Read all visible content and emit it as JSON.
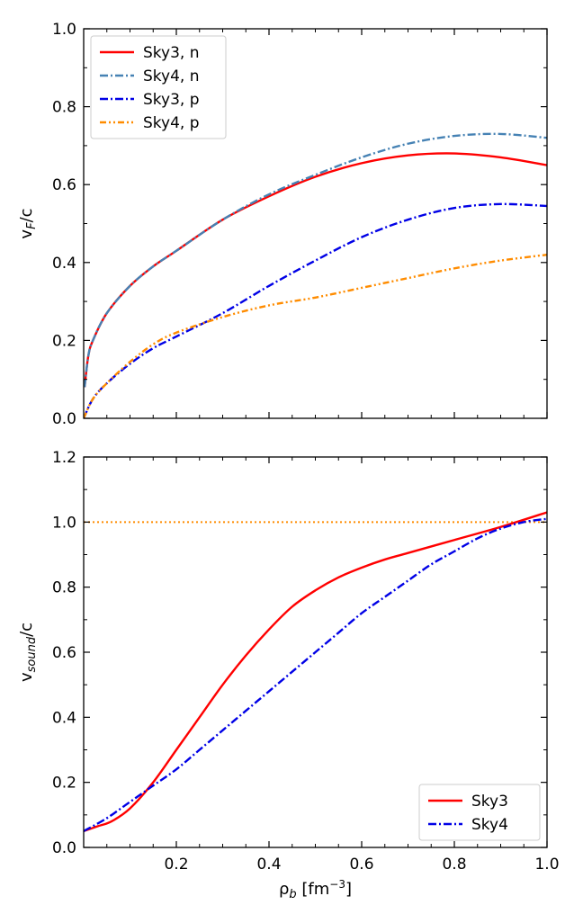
{
  "chart_data": [
    {
      "type": "line",
      "title": "",
      "xlabel": "",
      "ylabel": "v_F/c",
      "ylabel_main": "v",
      "ylabel_sub": "F",
      "ylabel_tail": "/c",
      "xlim": [
        0,
        1.0
      ],
      "ylim": [
        0,
        1.0
      ],
      "xticks": [
        0.2,
        0.4,
        0.6,
        0.8,
        1.0
      ],
      "xtick_labels_shown": false,
      "yticks": [
        0.0,
        0.2,
        0.4,
        0.6,
        0.8,
        1.0
      ],
      "ytick_labels": [
        "0.0",
        "0.2",
        "0.4",
        "0.6",
        "0.8",
        "1.0"
      ],
      "legend_position": "top-left",
      "series": [
        {
          "name": "Sky3, n",
          "color": "#ff0000",
          "dash": "solid",
          "x": [
            0.002,
            0.01,
            0.02,
            0.05,
            0.1,
            0.15,
            0.2,
            0.3,
            0.4,
            0.5,
            0.6,
            0.7,
            0.8,
            0.9,
            1.0
          ],
          "y": [
            0.08,
            0.16,
            0.2,
            0.27,
            0.34,
            0.39,
            0.43,
            0.51,
            0.57,
            0.62,
            0.655,
            0.675,
            0.68,
            0.67,
            0.65
          ]
        },
        {
          "name": "Sky4, n",
          "color": "#4682b4",
          "dash": "dashdot",
          "x": [
            0.002,
            0.01,
            0.02,
            0.05,
            0.1,
            0.15,
            0.2,
            0.3,
            0.4,
            0.5,
            0.6,
            0.7,
            0.8,
            0.9,
            1.0
          ],
          "y": [
            0.08,
            0.16,
            0.2,
            0.27,
            0.34,
            0.39,
            0.43,
            0.51,
            0.575,
            0.625,
            0.67,
            0.705,
            0.725,
            0.73,
            0.72
          ]
        },
        {
          "name": "Sky3, p",
          "color": "#0000e6",
          "dash": "dashdot",
          "x": [
            0.0,
            0.02,
            0.05,
            0.1,
            0.15,
            0.2,
            0.3,
            0.4,
            0.5,
            0.6,
            0.7,
            0.8,
            0.9,
            1.0
          ],
          "y": [
            0.0,
            0.05,
            0.09,
            0.14,
            0.18,
            0.21,
            0.27,
            0.34,
            0.405,
            0.465,
            0.51,
            0.54,
            0.55,
            0.545
          ]
        },
        {
          "name": "Sky4, p",
          "color": "#ff8c00",
          "dash": "dashdotdot",
          "x": [
            0.0,
            0.02,
            0.05,
            0.1,
            0.15,
            0.2,
            0.3,
            0.4,
            0.5,
            0.6,
            0.7,
            0.8,
            0.9,
            1.0
          ],
          "y": [
            0.0,
            0.05,
            0.09,
            0.145,
            0.19,
            0.22,
            0.26,
            0.29,
            0.31,
            0.335,
            0.36,
            0.385,
            0.405,
            0.42
          ]
        }
      ]
    },
    {
      "type": "line",
      "title": "",
      "xlabel": "ρ_b [fm^-3]",
      "xlabel_main": "ρ",
      "xlabel_sub": "b",
      "xlabel_tail": " [fm",
      "xlabel_sup": "−3",
      "xlabel_close": "]",
      "ylabel": "v_sound/c",
      "ylabel_main": "v",
      "ylabel_sub": "sound",
      "ylabel_tail": "/c",
      "xlim": [
        0,
        1.0
      ],
      "ylim": [
        0,
        1.2
      ],
      "xticks": [
        0.2,
        0.4,
        0.6,
        0.8,
        1.0
      ],
      "xtick_labels": [
        "0.2",
        "0.4",
        "0.6",
        "0.8",
        "1.0"
      ],
      "yticks": [
        0.0,
        0.2,
        0.4,
        0.6,
        0.8,
        1.0,
        1.2
      ],
      "ytick_labels": [
        "0.0",
        "0.2",
        "0.4",
        "0.6",
        "0.8",
        "1.0",
        "1.2"
      ],
      "legend_position": "bottom-right",
      "reference_line": {
        "y": 1.0,
        "color": "#ff8c00",
        "dash": "dotted"
      },
      "series": [
        {
          "name": "Sky3",
          "color": "#ff0000",
          "dash": "solid",
          "x": [
            0.0,
            0.03,
            0.06,
            0.1,
            0.15,
            0.2,
            0.25,
            0.3,
            0.35,
            0.4,
            0.45,
            0.5,
            0.55,
            0.6,
            0.65,
            0.7,
            0.8,
            0.9,
            1.0
          ],
          "y": [
            0.05,
            0.065,
            0.08,
            0.12,
            0.2,
            0.3,
            0.4,
            0.5,
            0.59,
            0.67,
            0.74,
            0.79,
            0.83,
            0.86,
            0.885,
            0.905,
            0.945,
            0.985,
            1.03
          ]
        },
        {
          "name": "Sky4",
          "color": "#0000e6",
          "dash": "dashdot",
          "x": [
            0.0,
            0.05,
            0.1,
            0.15,
            0.2,
            0.25,
            0.3,
            0.35,
            0.4,
            0.45,
            0.5,
            0.55,
            0.6,
            0.65,
            0.7,
            0.75,
            0.8,
            0.85,
            0.9,
            0.95,
            1.0
          ],
          "y": [
            0.05,
            0.09,
            0.14,
            0.19,
            0.24,
            0.3,
            0.36,
            0.42,
            0.48,
            0.54,
            0.6,
            0.66,
            0.72,
            0.77,
            0.82,
            0.87,
            0.91,
            0.95,
            0.98,
            1.0,
            1.01
          ]
        }
      ]
    }
  ]
}
